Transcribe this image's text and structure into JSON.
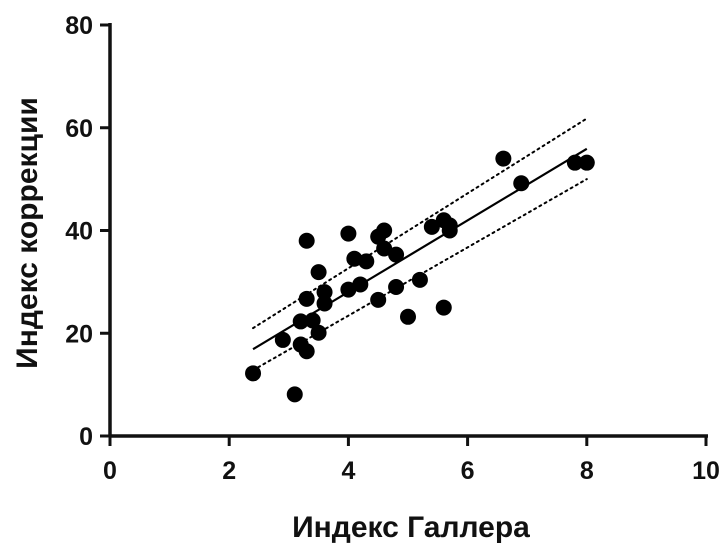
{
  "chart_data": {
    "type": "scatter",
    "xlabel": "Индекс Галлера",
    "ylabel": "Индекс коррекции",
    "xlim": [
      0,
      10
    ],
    "ylim": [
      0,
      80
    ],
    "xticks": [
      0,
      2,
      4,
      6,
      8,
      10
    ],
    "yticks": [
      0,
      20,
      40,
      60,
      80
    ],
    "xtick_labels": [
      "0",
      "2",
      "4",
      "6",
      "8",
      "10"
    ],
    "ytick_labels": [
      "0",
      "20",
      "40",
      "60",
      "80"
    ],
    "grid": false,
    "legend": "none",
    "series": [
      {
        "points": [
          {
            "x": 2.4,
            "y": 12.2
          },
          {
            "x": 2.9,
            "y": 18.7
          },
          {
            "x": 3.1,
            "y": 8.1
          },
          {
            "x": 3.2,
            "y": 17.8
          },
          {
            "x": 3.2,
            "y": 22.3
          },
          {
            "x": 3.3,
            "y": 16.5
          },
          {
            "x": 3.3,
            "y": 26.7
          },
          {
            "x": 3.3,
            "y": 38.0
          },
          {
            "x": 3.4,
            "y": 22.5
          },
          {
            "x": 3.5,
            "y": 20.1
          },
          {
            "x": 3.5,
            "y": 31.9
          },
          {
            "x": 3.6,
            "y": 25.8
          },
          {
            "x": 3.6,
            "y": 28.0
          },
          {
            "x": 4.0,
            "y": 28.5
          },
          {
            "x": 4.0,
            "y": 39.4
          },
          {
            "x": 4.1,
            "y": 34.5
          },
          {
            "x": 4.2,
            "y": 29.5
          },
          {
            "x": 4.3,
            "y": 34.0
          },
          {
            "x": 4.5,
            "y": 26.5
          },
          {
            "x": 4.5,
            "y": 38.8
          },
          {
            "x": 4.6,
            "y": 36.5
          },
          {
            "x": 4.6,
            "y": 40.0
          },
          {
            "x": 4.8,
            "y": 29.0
          },
          {
            "x": 4.8,
            "y": 35.3
          },
          {
            "x": 5.0,
            "y": 23.2
          },
          {
            "x": 5.2,
            "y": 30.4
          },
          {
            "x": 5.4,
            "y": 40.7
          },
          {
            "x": 5.6,
            "y": 42.0
          },
          {
            "x": 5.6,
            "y": 25.0
          },
          {
            "x": 5.7,
            "y": 40.0
          },
          {
            "x": 5.7,
            "y": 41.0
          },
          {
            "x": 6.6,
            "y": 54.0
          },
          {
            "x": 6.9,
            "y": 49.2
          },
          {
            "x": 7.8,
            "y": 53.2
          },
          {
            "x": 8.0,
            "y": 53.2
          }
        ],
        "color": "#000000"
      }
    ],
    "regression_line": {
      "x": [
        2.4,
        8.0
      ],
      "y": [
        16.9,
        55.9
      ],
      "color": "#000000"
    },
    "confidence_band": {
      "upper": {
        "x": [
          2.4,
          8.0
        ],
        "y": [
          21.0,
          61.8
        ]
      },
      "lower": {
        "x": [
          2.4,
          8.0
        ],
        "y": [
          12.8,
          50.0
        ]
      },
      "color": "#000000"
    }
  }
}
